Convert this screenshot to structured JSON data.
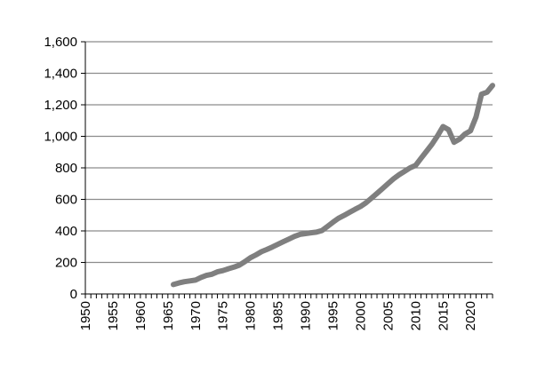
{
  "chart_data": {
    "type": "line",
    "title": "",
    "xlabel": "",
    "ylabel": "",
    "xlim": [
      1950,
      2024
    ],
    "ylim": [
      0,
      1600
    ],
    "grid": true,
    "y_ticks": [
      0,
      200,
      400,
      600,
      800,
      1000,
      1200,
      1400,
      1600
    ],
    "y_tick_labels": [
      "0",
      "200",
      "400",
      "600",
      "800",
      "1,000",
      "1,200",
      "1,400",
      "1,600"
    ],
    "x_ticks": [
      1950,
      1955,
      1960,
      1965,
      1970,
      1975,
      1980,
      1985,
      1990,
      1995,
      2000,
      2005,
      2010,
      2015,
      2020
    ],
    "x_tick_labels": [
      "1950",
      "1955",
      "1960",
      "1965",
      "1970",
      "1975",
      "1980",
      "1985",
      "1990",
      "1995",
      "2000",
      "2005",
      "2010",
      "2015",
      "2020"
    ],
    "series": [
      {
        "color": "#7f7f7f",
        "x": [
          1966,
          1967,
          1968,
          1969,
          1970,
          1971,
          1972,
          1973,
          1974,
          1975,
          1976,
          1977,
          1978,
          1979,
          1980,
          1981,
          1982,
          1983,
          1984,
          1985,
          1986,
          1987,
          1988,
          1989,
          1990,
          1991,
          1992,
          1993,
          1994,
          1995,
          1996,
          1997,
          1998,
          1999,
          2000,
          2001,
          2002,
          2003,
          2004,
          2005,
          2006,
          2007,
          2008,
          2009,
          2010,
          2011,
          2012,
          2013,
          2014,
          2015,
          2016,
          2017,
          2018,
          2019,
          2020,
          2021,
          2022,
          2023,
          2024
        ],
        "values": [
          60,
          70,
          78,
          83,
          88,
          105,
          118,
          125,
          140,
          148,
          160,
          170,
          183,
          205,
          230,
          248,
          268,
          282,
          298,
          315,
          332,
          348,
          365,
          378,
          383,
          388,
          392,
          402,
          428,
          455,
          480,
          498,
          518,
          537,
          555,
          578,
          608,
          638,
          668,
          700,
          730,
          756,
          778,
          800,
          815,
          860,
          905,
          950,
          1003,
          1062,
          1042,
          962,
          982,
          1015,
          1035,
          1122,
          1267,
          1280,
          1323
        ]
      }
    ]
  }
}
